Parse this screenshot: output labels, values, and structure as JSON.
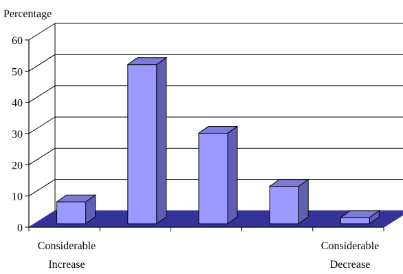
{
  "chart_data": {
    "type": "bar",
    "ylabel": "Percentage",
    "xlabel": "",
    "title": "",
    "ylim": [
      0,
      60
    ],
    "yticks": [
      "0",
      "10",
      "20",
      "30",
      "40",
      "50",
      "60"
    ],
    "categories": [
      "Considerable Increase",
      "",
      "",
      "",
      "Considerable Decrease"
    ],
    "values": [
      7,
      51,
      29,
      12,
      2
    ],
    "grid": true,
    "legend": "none",
    "colors": {
      "bar_front": "#9999ff",
      "bar_side": "#5f5fb6",
      "bar_top": "#7c7cd8",
      "floor": "#333399",
      "grid": "#000000"
    }
  }
}
